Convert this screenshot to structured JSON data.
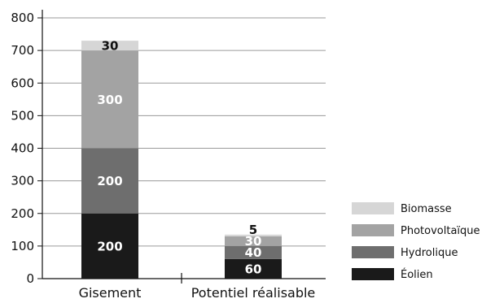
{
  "chart_data": {
    "type": "bar",
    "stacked": true,
    "categories": [
      "Gisement",
      "Potentiel réalisable"
    ],
    "series": [
      {
        "name": "Éolien",
        "values": [
          200,
          60
        ],
        "color": "#1a1a1a"
      },
      {
        "name": "Hydrolique",
        "values": [
          200,
          40
        ],
        "color": "#6e6e6e"
      },
      {
        "name": "Photovoltaïque",
        "values": [
          300,
          30
        ],
        "color": "#a3a3a3"
      },
      {
        "name": "Biomasse",
        "values": [
          30,
          5
        ],
        "color": "#d6d6d6"
      }
    ],
    "ylim": [
      0,
      800
    ],
    "yticks": [
      "0",
      "100",
      "200",
      "300",
      "400",
      "500",
      "600",
      "700",
      "800"
    ],
    "grid": true,
    "legend_position": "bottom-right",
    "legend_order": [
      "Biomasse",
      "Photovoltaïque",
      "Hydrolique",
      "Éolien"
    ]
  }
}
